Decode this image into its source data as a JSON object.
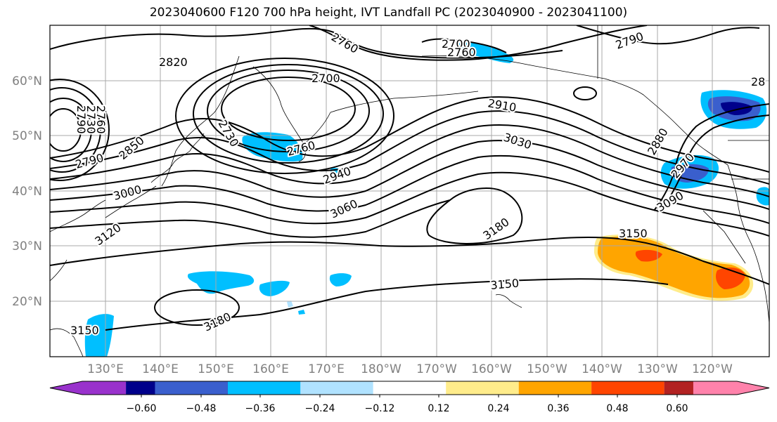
{
  "title": "2023040600 F120 700 hPa height, IVT Landfall PC (2023040900 - 2023041100)",
  "lat_labels": [
    "60°N",
    "50°N",
    "40°N",
    "30°N",
    "20°N"
  ],
  "lon_labels": [
    "130°E",
    "140°E",
    "150°E",
    "160°E",
    "170°E",
    "180°W",
    "170°W",
    "160°W",
    "150°W",
    "140°W",
    "130°W",
    "120°W"
  ],
  "contour_labels": [
    "2820",
    "2760",
    "2700",
    "2790",
    "2700",
    "2760",
    "2790",
    "2730",
    "2760",
    "2850",
    "2790",
    "2730",
    "2760",
    "2910",
    "3030",
    "2940",
    "3000",
    "3060",
    "3120",
    "3180",
    "3150",
    "3150",
    "3180",
    "3150",
    "2880",
    "2970",
    "3090",
    "28"
  ],
  "colorbar": {
    "ticks": [
      "−0.60",
      "−0.48",
      "−0.36",
      "−0.24",
      "−0.12",
      "0.12",
      "0.24",
      "0.36",
      "0.48",
      "0.60"
    ],
    "colors": [
      "#9932cc",
      "#00008b",
      "#3a5fcd",
      "#00bfff",
      "#b0e2ff",
      "#ffffff",
      "#ffec8b",
      "#ffa500",
      "#ff4500",
      "#b22222",
      "#ff82ab"
    ]
  }
}
